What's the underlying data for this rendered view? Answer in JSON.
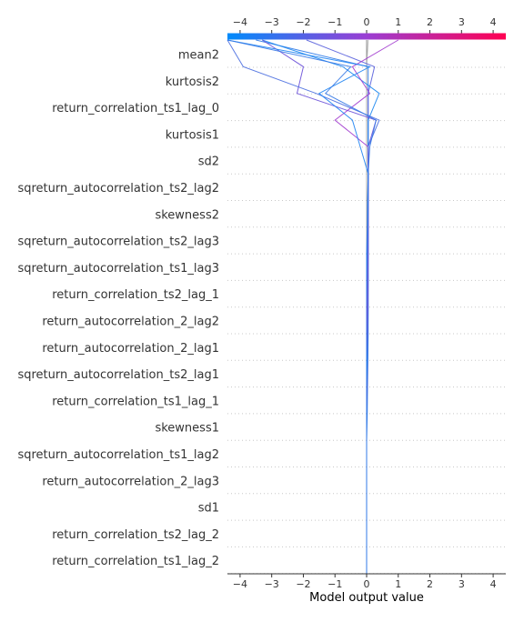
{
  "chart_data": {
    "type": "decision_plot",
    "xlabel": "Model output value",
    "xlim": [
      -4.4,
      4.4
    ],
    "ticks": [
      -4,
      -3,
      -2,
      -1,
      0,
      1,
      2,
      3,
      4
    ],
    "tick_labels": [
      "−4",
      "−3",
      "−2",
      "−1",
      "0",
      "1",
      "2",
      "3",
      "4"
    ],
    "base_value": 0,
    "features": [
      "mean2",
      "kurtosis2",
      "return_correlation_ts1_lag_0",
      "kurtosis1",
      "sd2",
      "sqreturn_autocorrelation_ts2_lag2",
      "skewness2",
      "sqreturn_autocorrelation_ts2_lag3",
      "sqreturn_autocorrelation_ts1_lag3",
      "return_correlation_ts2_lag_1",
      "return_autocorrelation_2_lag2",
      "return_autocorrelation_2_lag1",
      "sqreturn_autocorrelation_ts2_lag1",
      "return_correlation_ts1_lag_1",
      "skewness1",
      "sqreturn_autocorrelation_ts1_lag2",
      "return_autocorrelation_2_lag3",
      "sd1",
      "return_correlation_ts2_lag_2",
      "return_correlation_ts1_lag_2"
    ],
    "colorbar": {
      "colors": [
        "#008bfb",
        "#9a3ed3",
        "#ff0052"
      ]
    },
    "series": [
      {
        "values": [
          0,
          0,
          0,
          0,
          0,
          0,
          0,
          0,
          0,
          0,
          0,
          0,
          0,
          0,
          0,
          0,
          0,
          0,
          0,
          0,
          0
        ],
        "color": "#8a8a8a"
      },
      {
        "values": [
          0,
          0,
          0,
          0,
          0,
          0,
          0,
          0,
          0,
          0,
          0,
          0,
          0,
          0,
          0,
          0,
          0,
          0,
          0,
          0,
          0.05
        ],
        "color": "#b0b0b0"
      },
      {
        "values": [
          0,
          0,
          0,
          0,
          0,
          0,
          0.02,
          0.03,
          0.04,
          0.05,
          0.05,
          0.05,
          0.05,
          0.05,
          0.05,
          0.05,
          0.05,
          0.05,
          0.05,
          0.05,
          -3.5
        ],
        "color": "#2f7be8"
      },
      {
        "values": [
          0,
          0,
          0,
          0,
          0,
          0,
          0,
          0.02,
          0.03,
          0.04,
          0.05,
          0.05,
          0.05,
          0.05,
          0.05,
          0.05,
          0.05,
          0.05,
          0.05,
          0.25,
          -1.9
        ],
        "color": "#5a62dd"
      },
      {
        "values": [
          0,
          0,
          0,
          0,
          0,
          0,
          0,
          0,
          0.02,
          0.03,
          0.04,
          0.05,
          0.05,
          0.05,
          0.05,
          0.05,
          0.05,
          0.05,
          0.4,
          -0.75,
          -3.3
        ],
        "color": "#1a86f0"
      },
      {
        "values": [
          0,
          0,
          0,
          0,
          0,
          0,
          0,
          0,
          0,
          0.02,
          0.03,
          0.04,
          0.05,
          0.05,
          0.05,
          0.05,
          0.05,
          0.3,
          -2.2,
          -2.0,
          -3.3
        ],
        "color": "#6a50d8"
      },
      {
        "values": [
          0,
          0,
          0,
          0,
          0,
          0,
          0,
          0,
          0,
          0,
          0.02,
          0.03,
          0.04,
          0.05,
          0.05,
          0.05,
          0.05,
          -1.0,
          0.1,
          -0.45,
          1.0
        ],
        "color": "#a23ccf"
      },
      {
        "values": [
          0,
          0,
          0,
          0,
          0,
          0,
          0,
          0,
          0,
          0,
          0,
          0.02,
          0.03,
          0.04,
          0.05,
          0.05,
          0.05,
          0.4,
          -1.6,
          -3.9,
          -4.4
        ],
        "color": "#4a6ee0"
      },
      {
        "values": [
          0,
          0,
          0,
          0,
          0,
          0,
          0,
          0,
          0,
          0,
          0,
          0,
          0.02,
          0.03,
          0.04,
          0.05,
          -0.2,
          -0.45,
          -1.5,
          0.1,
          -4.4
        ],
        "color": "#1f84f2"
      },
      {
        "values": [
          0,
          0,
          0,
          0,
          0,
          0,
          0,
          0,
          0,
          0,
          0,
          0,
          0,
          0.02,
          0.03,
          0.05,
          0.1,
          0.3,
          -1.3,
          -0.5,
          -4.4
        ],
        "color": "#3478e6"
      }
    ]
  }
}
